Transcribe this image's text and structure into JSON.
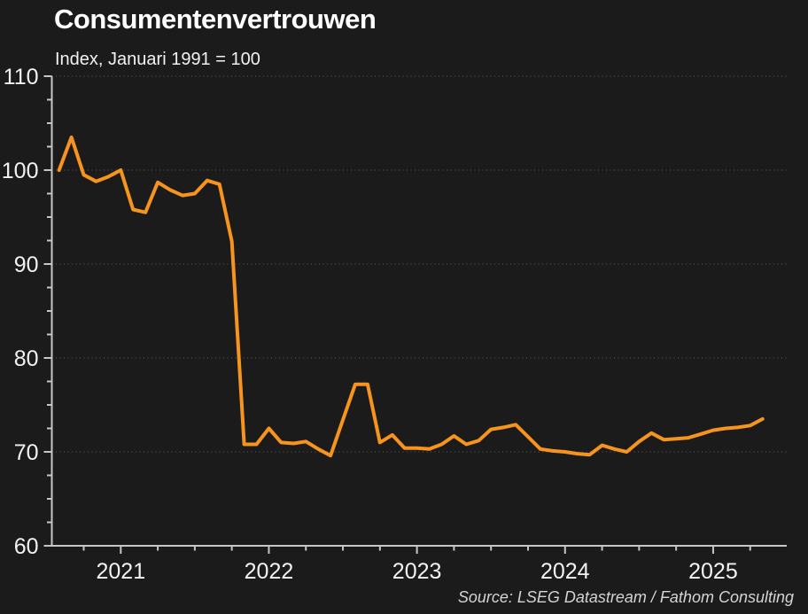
{
  "chart_data": {
    "type": "line",
    "title": "Consumentenvertrouwen",
    "subtitle": "Index, Januari 1991 = 100",
    "source": "Source: LSEG Datastream / Fathom Consulting",
    "legend": "none",
    "grid": "dotted horizontal gridlines at 70, 80, 90, 100, 110",
    "ylim": [
      60,
      110
    ],
    "y_ticks": [
      60,
      70,
      80,
      90,
      100,
      110
    ],
    "y_minor_tick_step": 2.5,
    "x_tick_frequency": "quarterly",
    "x_year_labels": [
      "2021",
      "2022",
      "2023",
      "2024",
      "2025"
    ],
    "series": [
      {
        "name": "Consumentenvertrouwen index",
        "start_month": "2020-08",
        "end_month": "2025-05",
        "frequency": "monthly",
        "color": "#F7941D",
        "values": [
          100.0,
          103.5,
          99.5,
          98.8,
          99.3,
          100.0,
          95.8,
          95.5,
          98.7,
          97.9,
          97.3,
          97.5,
          98.9,
          98.5,
          92.4,
          70.8,
          70.8,
          72.5,
          71.0,
          70.9,
          71.1,
          70.3,
          69.6,
          73.4,
          77.2,
          77.2,
          71.0,
          71.8,
          70.4,
          70.4,
          70.3,
          70.8,
          71.7,
          70.8,
          71.2,
          72.4,
          72.6,
          72.9,
          71.6,
          70.3,
          70.1,
          70.0,
          69.8,
          69.7,
          70.7,
          70.3,
          70.0,
          71.1,
          72.0,
          71.3,
          71.4,
          71.5,
          71.9,
          72.3,
          72.5,
          72.6,
          72.8,
          73.5
        ]
      }
    ]
  },
  "colors": {
    "background": "#1b1b1b",
    "line": "#F7941D",
    "title_text": "#ffffff",
    "label_text": "#f2f2f2",
    "axis": "#c6c6c6",
    "gridline": "#4f4f4f",
    "source_text": "#d4d4d4"
  }
}
